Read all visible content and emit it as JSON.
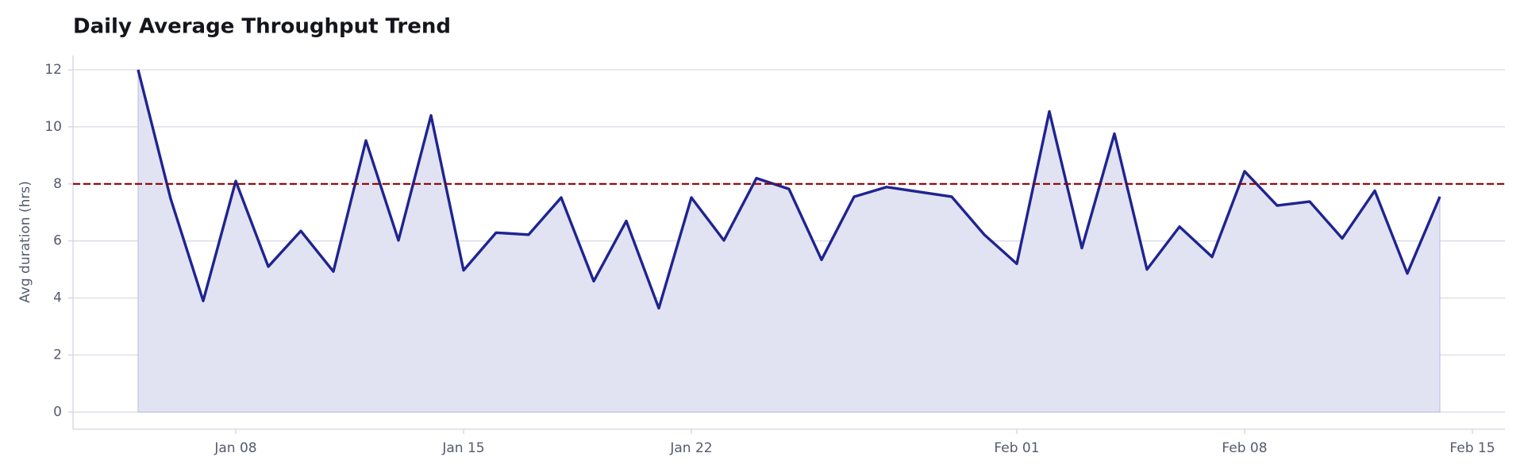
{
  "chart_data": {
    "type": "line",
    "title": "Daily Average Throughput Trend",
    "y_label": "Avg duration (hrs)",
    "x": [
      "01-05",
      "01-06",
      "01-07",
      "01-08",
      "01-09",
      "01-10",
      "01-11",
      "01-12",
      "01-13",
      "01-14",
      "01-15",
      "01-16",
      "01-17",
      "01-18",
      "01-19",
      "01-20",
      "01-21",
      "01-22",
      "01-23",
      "01-24",
      "01-25",
      "01-26",
      "01-27",
      "01-28",
      "01-30",
      "01-31",
      "02-01",
      "02-02",
      "02-03",
      "02-04",
      "02-05",
      "02-06",
      "02-07",
      "02-08",
      "02-09",
      "02-10",
      "02-11",
      "02-12",
      "02-13",
      "02-14"
    ],
    "series": [
      {
        "color": "#1f2490",
        "fill": "#e1e3f2",
        "values": [
          12.0,
          7.48,
          3.9,
          8.1,
          5.1,
          6.35,
          4.93,
          9.52,
          6.02,
          10.4,
          4.97,
          6.29,
          6.22,
          7.52,
          4.59,
          6.7,
          3.64,
          7.52,
          6.02,
          8.2,
          7.82,
          5.34,
          7.55,
          7.89,
          7.55,
          6.22,
          5.2,
          10.54,
          5.75,
          9.76,
          5.0,
          6.5,
          5.44,
          8.44,
          7.24,
          7.38,
          6.09,
          7.76,
          4.86,
          7.55
        ]
      }
    ],
    "reference_line": {
      "value": 8,
      "color": "#8b0000"
    },
    "xlim": [
      "01-03",
      "02-16"
    ],
    "xticks": [
      {
        "value": "01-08",
        "label": "Jan 08"
      },
      {
        "value": "01-15",
        "label": "Jan 15"
      },
      {
        "value": "01-22",
        "label": "Jan 22"
      },
      {
        "value": "02-01",
        "label": "Feb 01"
      },
      {
        "value": "02-08",
        "label": "Feb 08"
      },
      {
        "value": "02-15",
        "label": "Feb 15"
      }
    ],
    "ylim": [
      -0.6,
      12.5
    ],
    "yticks": [
      0,
      2,
      4,
      6,
      8,
      10,
      12
    ],
    "grid": true
  }
}
